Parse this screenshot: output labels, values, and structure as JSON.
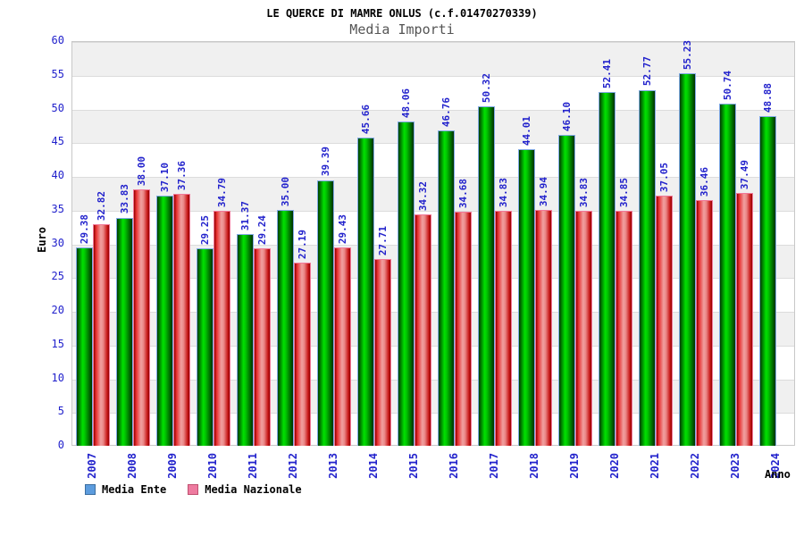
{
  "chart_data": {
    "type": "bar",
    "title": "LE QUERCE DI MAMRE ONLUS (c.f.01470270339)",
    "subtitle": "Media Importi",
    "xlabel": "Anno",
    "ylabel": "Euro",
    "ylim": [
      0,
      60
    ],
    "y_tick_step": 5,
    "y_ticks": [
      0,
      5,
      10,
      15,
      20,
      25,
      30,
      35,
      40,
      45,
      50,
      55,
      60
    ],
    "grid": "alternating-horizontal-bands",
    "legend_position": "bottom-left",
    "value_labels": "rotated-90-above-bars",
    "categories": [
      "2007",
      "2008",
      "2009",
      "2010",
      "2011",
      "2012",
      "2013",
      "2014",
      "2015",
      "2016",
      "2017",
      "2018",
      "2019",
      "2020",
      "2021",
      "2022",
      "2023",
      "2024"
    ],
    "series": [
      {
        "name": "Media Ente",
        "key": "media-ente",
        "legend_color": "#5c9cde",
        "bar_style": "green-cylinder-gradient",
        "values": [
          29.38,
          33.83,
          37.1,
          29.25,
          31.37,
          35.0,
          39.39,
          45.66,
          48.06,
          46.76,
          50.32,
          44.01,
          46.1,
          52.41,
          52.77,
          55.23,
          50.74,
          48.88
        ]
      },
      {
        "name": "Media Nazionale",
        "key": "media-nazionale",
        "legend_color": "#ee7ba0",
        "bar_style": "red-cylinder-gradient",
        "values": [
          32.82,
          38.0,
          37.36,
          34.79,
          29.24,
          27.19,
          29.43,
          27.71,
          34.32,
          34.68,
          34.83,
          34.94,
          34.83,
          34.85,
          37.05,
          36.46,
          37.49,
          null
        ]
      }
    ],
    "colors": {
      "axis_text": "#2222cc",
      "title_text": "#000000",
      "subtitle_text": "#555555",
      "band_fill": "#f0f0f0",
      "grid_line": "#dcdcdc",
      "plot_border": "#c8c8c8"
    }
  }
}
